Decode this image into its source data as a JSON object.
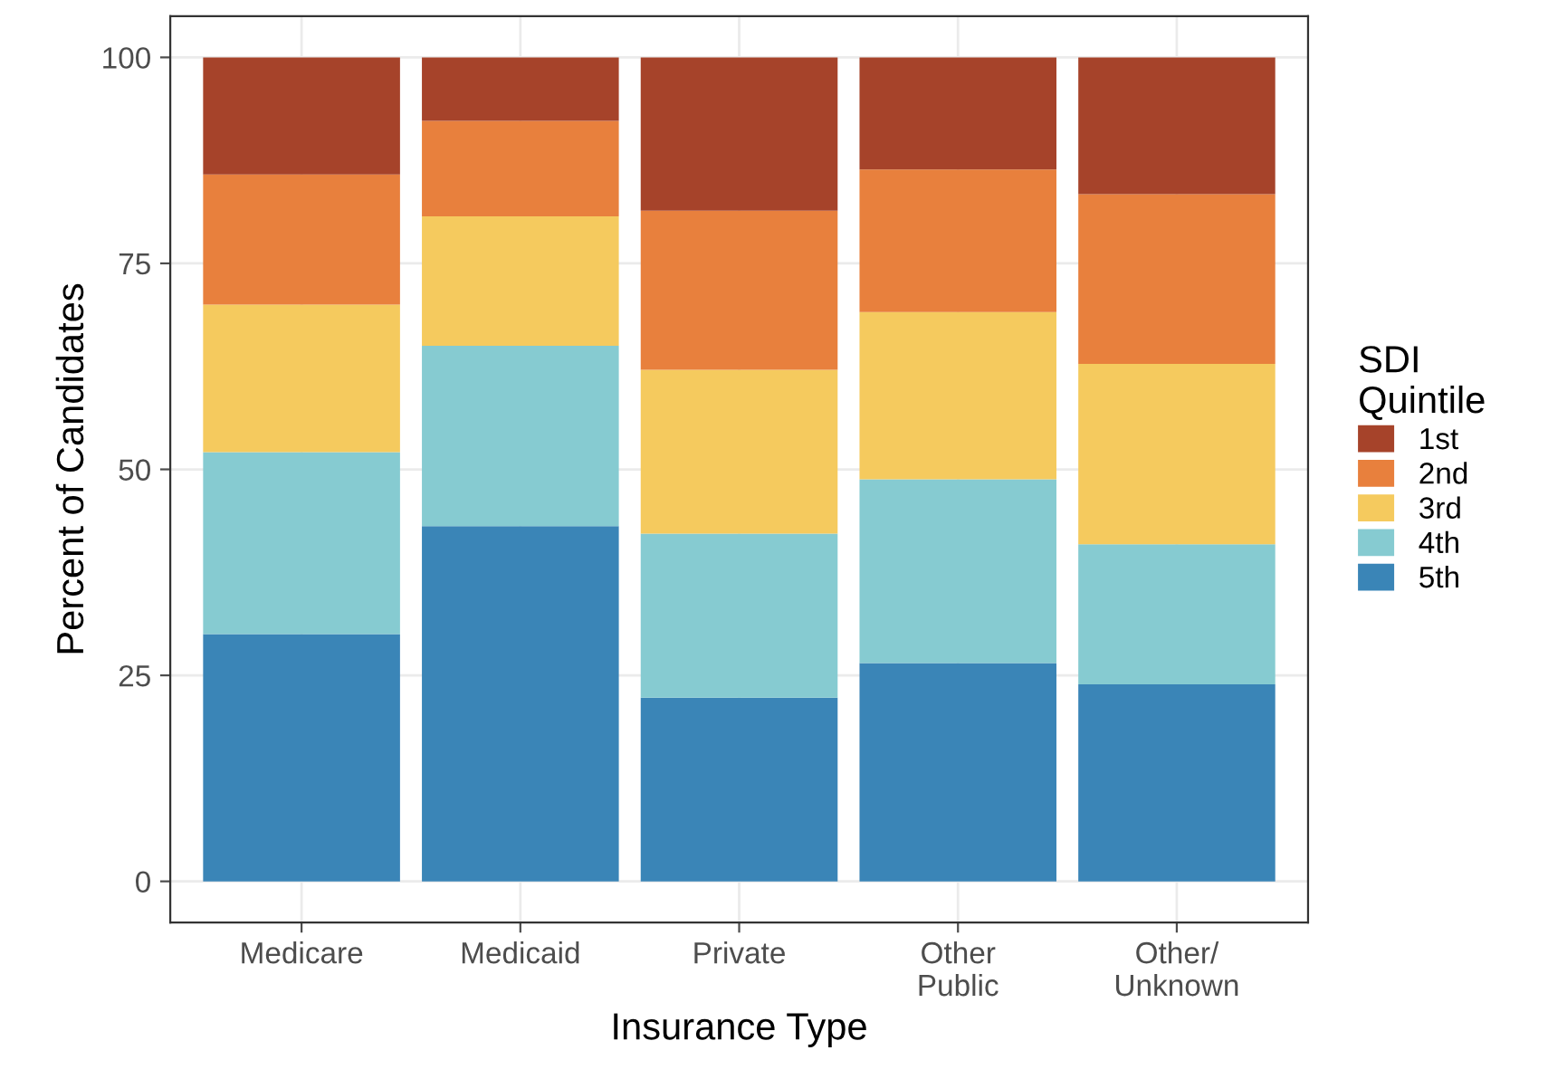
{
  "chart_data": {
    "type": "bar",
    "stacked": true,
    "xlabel": "Insurance Type",
    "ylabel": "Percent of Candidates",
    "legend_title": "SDI\nQuintile",
    "categories": [
      "Medicare",
      "Medicaid",
      "Private",
      "Other\nPublic",
      "Other/\nUnknown"
    ],
    "series": [
      {
        "name": "5th",
        "color": "#3a85b7",
        "values": [
          30.0,
          43.1,
          22.3,
          26.5,
          23.9
        ]
      },
      {
        "name": "4th",
        "color": "#86cbd1",
        "values": [
          22.1,
          21.9,
          19.9,
          22.3,
          17.0
        ]
      },
      {
        "name": "3rd",
        "color": "#f5ca5e",
        "values": [
          17.9,
          15.7,
          19.9,
          20.3,
          21.9
        ]
      },
      {
        "name": "2nd",
        "color": "#e8803d",
        "values": [
          15.8,
          11.6,
          19.3,
          17.3,
          20.6
        ]
      },
      {
        "name": "1st",
        "color": "#a6432a",
        "values": [
          14.2,
          7.7,
          18.6,
          13.6,
          16.6
        ]
      }
    ],
    "ylim": [
      -5,
      105
    ],
    "yticks": [
      0,
      25,
      50,
      75,
      100
    ],
    "grid": true,
    "legend": "right"
  }
}
